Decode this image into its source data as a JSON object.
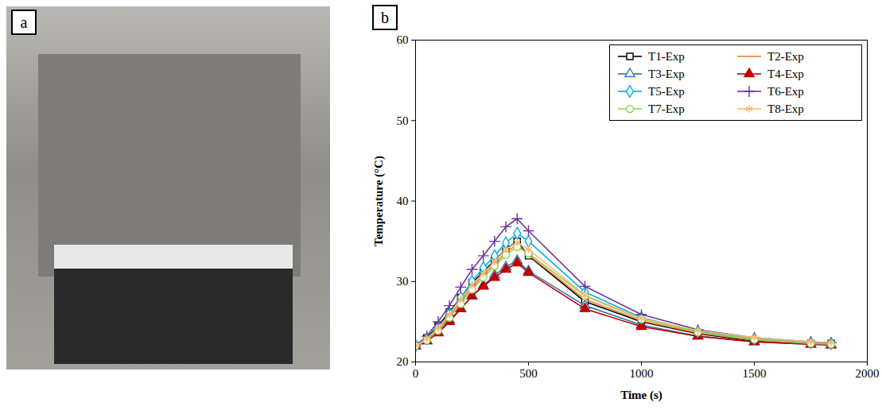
{
  "panel_labels": [
    "a",
    "b"
  ],
  "chart_data": {
    "type": "line",
    "x_label": "Time (s)",
    "y_label": "Temperature (°C)",
    "x": [
      0,
      50,
      100,
      150,
      200,
      250,
      300,
      350,
      400,
      450,
      500,
      750,
      1000,
      1250,
      1500,
      1750,
      1840
    ],
    "xlim": [
      0,
      2000
    ],
    "xticks": [
      0,
      500,
      1000,
      1500,
      2000
    ],
    "ylim": [
      20,
      60
    ],
    "yticks": [
      20,
      30,
      40,
      50,
      60
    ],
    "grid": false,
    "legend": "top-right",
    "series": [
      {
        "name": "T1-Exp",
        "color": "#000000",
        "marker": "square",
        "values": [
          22,
          23.0,
          24.5,
          26.2,
          28.0,
          29.8,
          31.2,
          32.6,
          34.0,
          35.0,
          33.2,
          27.5,
          25.0,
          23.5,
          22.6,
          22.3,
          22.3
        ]
      },
      {
        "name": "T2-Exp",
        "color": "#ED7D31",
        "marker": "none",
        "values": [
          22,
          22.8,
          24.0,
          25.7,
          27.5,
          29.3,
          30.8,
          32.2,
          33.6,
          34.6,
          33.3,
          27.8,
          25.1,
          23.6,
          22.7,
          22.3,
          22.2
        ]
      },
      {
        "name": "T3-Exp",
        "color": "#2E75B6",
        "marker": "triangle",
        "values": [
          22,
          22.6,
          23.7,
          25.2,
          26.6,
          28.2,
          29.5,
          30.8,
          31.8,
          32.6,
          31.3,
          27.0,
          24.6,
          23.2,
          22.5,
          22.2,
          22.1
        ]
      },
      {
        "name": "T4-Exp",
        "color": "#C00000",
        "marker": "filled-triangle",
        "values": [
          22,
          22.6,
          23.6,
          25.0,
          26.6,
          28.2,
          29.4,
          30.5,
          31.5,
          32.3,
          31.1,
          26.6,
          24.4,
          23.2,
          22.5,
          22.2,
          22.1
        ]
      },
      {
        "name": "T5-Exp",
        "color": "#00B0F0",
        "marker": "diamond",
        "values": [
          22,
          22.9,
          24.3,
          26.0,
          28.0,
          30.0,
          31.7,
          33.2,
          34.8,
          36.0,
          35.0,
          28.7,
          25.5,
          23.8,
          22.9,
          22.4,
          22.3
        ]
      },
      {
        "name": "T6-Exp",
        "color": "#7030A0",
        "marker": "plus",
        "values": [
          22,
          23.2,
          25.0,
          27.0,
          29.3,
          31.5,
          33.2,
          35.0,
          36.8,
          37.8,
          36.3,
          29.4,
          25.9,
          24.0,
          23.0,
          22.5,
          22.4
        ]
      },
      {
        "name": "T7-Exp",
        "color": "#92D050",
        "marker": "circle",
        "values": [
          22,
          22.7,
          23.9,
          25.5,
          27.2,
          29.0,
          30.5,
          31.9,
          33.3,
          34.3,
          33.5,
          28.2,
          25.3,
          23.7,
          22.8,
          22.3,
          22.2
        ]
      },
      {
        "name": "T8-Exp",
        "color": "#F9B872",
        "marker": "asterisk",
        "values": [
          22,
          22.9,
          24.2,
          25.9,
          27.8,
          29.6,
          31.0,
          32.5,
          34.0,
          34.9,
          34.0,
          28.3,
          25.4,
          23.9,
          23.0,
          22.5,
          22.4
        ]
      }
    ]
  }
}
